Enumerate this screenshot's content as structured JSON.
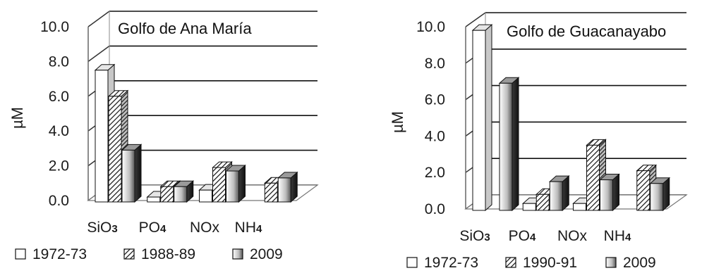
{
  "chart_data": [
    {
      "type": "bar",
      "title": "Golfo de Ana María",
      "ylabel": "µM",
      "xlabel": "",
      "ylim": [
        0,
        10
      ],
      "yticks": [
        "0.0",
        "2.0",
        "4.0",
        "6.0",
        "8.0",
        "10.0"
      ],
      "categories": [
        "SiO3",
        "PO4",
        "NOx",
        "NH4"
      ],
      "series": [
        {
          "name": "1972-73",
          "values": [
            7.5,
            0.2,
            0.6,
            0
          ]
        },
        {
          "name": "1988-89",
          "values": [
            6.0,
            0.8,
            1.9,
            1.0
          ]
        },
        {
          "name": "2009",
          "values": [
            2.9,
            0.8,
            1.7,
            1.3
          ]
        }
      ],
      "grid": true
    },
    {
      "type": "bar",
      "title": "Golfo de Guacanayabo",
      "ylabel": "µM",
      "xlabel": "",
      "ylim": [
        0,
        10
      ],
      "yticks": [
        "0.0",
        "2.0",
        "4.0",
        "6.0",
        "8.0",
        "10.0"
      ],
      "categories": [
        "SiO3",
        "PO4",
        "NOx",
        "NH4"
      ],
      "series": [
        {
          "name": "1972-73",
          "values": [
            9.8,
            0.3,
            0.3,
            0
          ]
        },
        {
          "name": "1990-91",
          "values": [
            0,
            0.8,
            3.5,
            2.1
          ]
        },
        {
          "name": "2009",
          "values": [
            6.9,
            1.5,
            1.6,
            1.4
          ]
        }
      ],
      "grid": true
    }
  ],
  "styles": {
    "grid_color": "#000000",
    "axis_color": "#555555",
    "series_fills": [
      "#ffffff",
      "hatch",
      "gradient-grey"
    ]
  }
}
